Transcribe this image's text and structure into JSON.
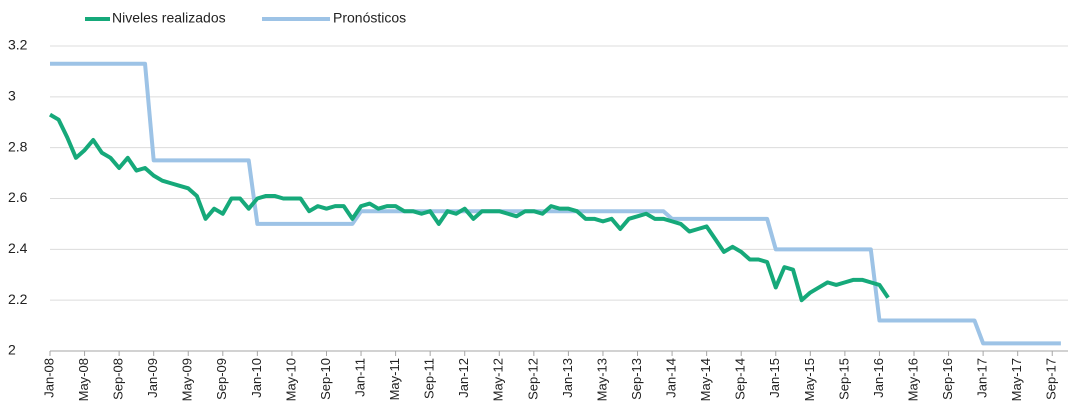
{
  "chart_data": {
    "type": "line",
    "categories": [
      "Jan-08",
      null,
      null,
      null,
      "May-08",
      null,
      null,
      null,
      "Sep-08",
      null,
      null,
      null,
      "Jan-09",
      null,
      null,
      null,
      "May-09",
      null,
      null,
      null,
      "Sep-09",
      null,
      null,
      null,
      "Jan-10",
      null,
      null,
      null,
      "May-10",
      null,
      null,
      null,
      "Sep-10",
      null,
      null,
      null,
      "Jan-11",
      null,
      null,
      null,
      "May-11",
      null,
      null,
      null,
      "Sep-11",
      null,
      null,
      null,
      "Jan-12",
      null,
      null,
      null,
      "May-12",
      null,
      null,
      null,
      "Sep-12",
      null,
      null,
      null,
      "Jan-13",
      null,
      null,
      null,
      "May-13",
      null,
      null,
      null,
      "Sep-13",
      null,
      null,
      null,
      "Jan-14",
      null,
      null,
      null,
      "May-14",
      null,
      null,
      null,
      "Sep-14",
      null,
      null,
      null,
      "Jan-15",
      null,
      null,
      null,
      "May-15",
      null,
      null,
      null,
      "Sep-15",
      null,
      null,
      null,
      "Jan-16",
      null,
      null,
      null,
      "May-16",
      null,
      null,
      null,
      "Sep-16",
      null,
      null,
      null,
      "Jan-17",
      null,
      null,
      null,
      "May-17",
      null,
      null,
      null,
      "Sep-17",
      null
    ],
    "series": [
      {
        "name": "Niveles realizados",
        "color": "#16a97a",
        "values": [
          2.93,
          2.91,
          2.84,
          2.76,
          2.79,
          2.83,
          2.78,
          2.76,
          2.72,
          2.76,
          2.71,
          2.72,
          2.69,
          2.67,
          2.66,
          2.65,
          2.64,
          2.61,
          2.52,
          2.56,
          2.54,
          2.6,
          2.6,
          2.56,
          2.6,
          2.61,
          2.61,
          2.6,
          2.6,
          2.6,
          2.55,
          2.57,
          2.56,
          2.57,
          2.57,
          2.52,
          2.57,
          2.58,
          2.56,
          2.57,
          2.57,
          2.55,
          2.55,
          2.54,
          2.55,
          2.5,
          2.55,
          2.54,
          2.56,
          2.52,
          2.55,
          2.55,
          2.55,
          2.54,
          2.53,
          2.55,
          2.55,
          2.54,
          2.57,
          2.56,
          2.56,
          2.55,
          2.52,
          2.52,
          2.51,
          2.52,
          2.48,
          2.52,
          2.53,
          2.54,
          2.52,
          2.52,
          2.51,
          2.5,
          2.47,
          2.48,
          2.49,
          2.44,
          2.39,
          2.41,
          2.39,
          2.36,
          2.36,
          2.35,
          2.25,
          2.33,
          2.32,
          2.2,
          2.23,
          2.25,
          2.27,
          2.26,
          2.27,
          2.28,
          2.28,
          2.27,
          2.26,
          2.21,
          null,
          null,
          null,
          null,
          null,
          null,
          null,
          null,
          null,
          null,
          null,
          null,
          null,
          null,
          null,
          null,
          null,
          null,
          null,
          null
        ]
      },
      {
        "name": "Pronósticos",
        "color": "#9dc3e6",
        "values": [
          3.13,
          3.13,
          3.13,
          3.13,
          3.13,
          3.13,
          3.13,
          3.13,
          3.13,
          3.13,
          3.13,
          3.13,
          2.75,
          2.75,
          2.75,
          2.75,
          2.75,
          2.75,
          2.75,
          2.75,
          2.75,
          2.75,
          2.75,
          2.75,
          2.5,
          2.5,
          2.5,
          2.5,
          2.5,
          2.5,
          2.5,
          2.5,
          2.5,
          2.5,
          2.5,
          2.5,
          2.55,
          2.55,
          2.55,
          2.55,
          2.55,
          2.55,
          2.55,
          2.55,
          2.55,
          2.55,
          2.55,
          2.55,
          2.55,
          2.55,
          2.55,
          2.55,
          2.55,
          2.55,
          2.55,
          2.55,
          2.55,
          2.55,
          2.55,
          2.55,
          2.55,
          2.55,
          2.55,
          2.55,
          2.55,
          2.55,
          2.55,
          2.55,
          2.55,
          2.55,
          2.55,
          2.55,
          2.52,
          2.52,
          2.52,
          2.52,
          2.52,
          2.52,
          2.52,
          2.52,
          2.52,
          2.52,
          2.52,
          2.52,
          2.4,
          2.4,
          2.4,
          2.4,
          2.4,
          2.4,
          2.4,
          2.4,
          2.4,
          2.4,
          2.4,
          2.4,
          2.12,
          2.12,
          2.12,
          2.12,
          2.12,
          2.12,
          2.12,
          2.12,
          2.12,
          2.12,
          2.12,
          2.12,
          2.03,
          2.03,
          2.03,
          2.03,
          2.03,
          2.03,
          2.03,
          2.03,
          2.03,
          2.03
        ]
      }
    ],
    "ylim": [
      2,
      3.2
    ],
    "yticks": [
      2,
      2.2,
      2.4,
      2.6,
      2.8,
      3,
      3.2
    ],
    "grid": true,
    "legend": "top"
  }
}
